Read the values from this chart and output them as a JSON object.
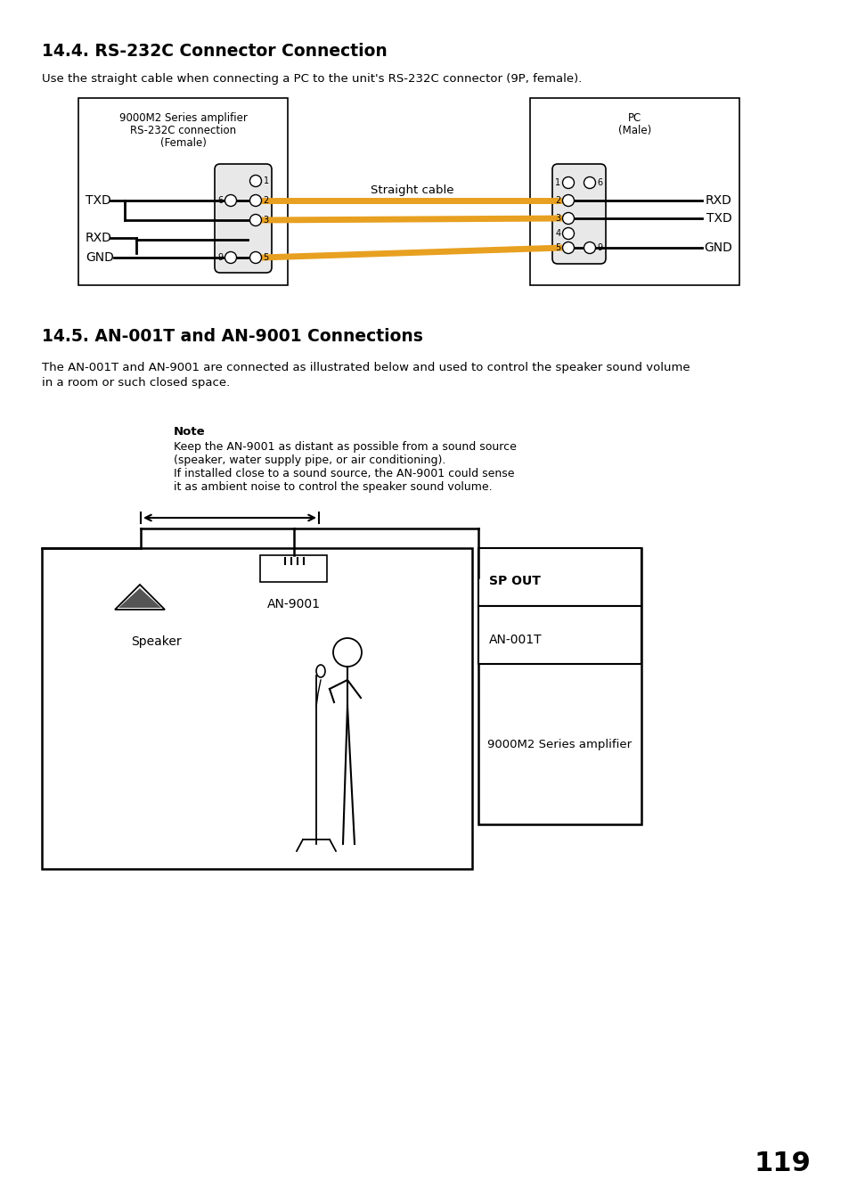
{
  "bg_color": "#ffffff",
  "page_number": "119",
  "section1_title": "14.4. RS-232C Connector Connection",
  "section1_desc": "Use the straight cable when connecting a PC to the unit's RS-232C connector (9P, female).",
  "left_box_label1": "9000M2 Series amplifier",
  "left_box_label2": "RS-232C connection",
  "left_box_label3": "(Female)",
  "right_box_label1": "PC",
  "right_box_label2": "(Male)",
  "straight_cable_label": "Straight cable",
  "txd_label": "TXD",
  "rxd_label": "RXD",
  "gnd_label": "GND",
  "rxd_right_label": "RXD",
  "txd_right_label": "TXD",
  "gnd_right_label": "GND",
  "orange_color": "#E8A020",
  "section2_title": "14.5. AN-001T and AN-9001 Connections",
  "section2_desc1": "The AN-001T and AN-9001 are connected as illustrated below and used to control the speaker sound volume",
  "section2_desc2": "in a room or such closed space.",
  "note_bold": "Note",
  "note_line1": "Keep the AN-9001 as distant as possible from a sound source",
  "note_line2": "(speaker, water supply pipe, or air conditioning).",
  "note_line3": "If installed close to a sound source, the AN-9001 could sense",
  "note_line4": "it as ambient noise to control the speaker sound volume.",
  "speaker_label": "Speaker",
  "an9001_label": "AN-9001",
  "sp_out_label": "SP OUT",
  "an001t_label": "AN-001T",
  "amplifier_label": "9000M2 Series amplifier"
}
